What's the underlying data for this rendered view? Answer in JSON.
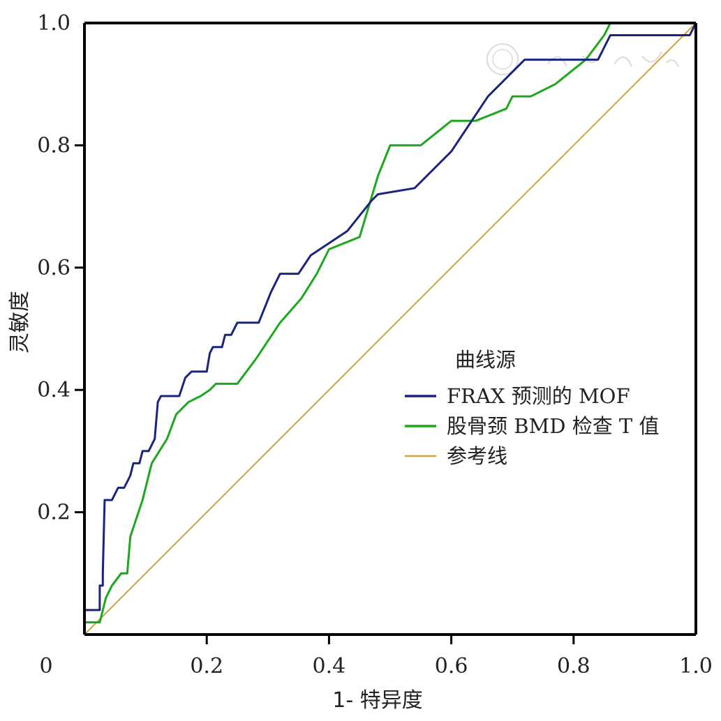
{
  "chart_data": {
    "type": "line",
    "xlabel": "1- 特异度",
    "ylabel": "灵敏度",
    "xlim": [
      0,
      1
    ],
    "ylim": [
      0,
      1
    ],
    "x_ticks": [
      "0",
      "0.2",
      "0.4",
      "0.6",
      "0.8",
      "1.0"
    ],
    "y_ticks": [
      "0.2",
      "0.4",
      "0.6",
      "0.8",
      "1.0"
    ],
    "grid": false,
    "legend": {
      "title": "曲线源",
      "position": "center-right"
    },
    "series": [
      {
        "name": "FRAX 预测的 MOF",
        "color": "#1a237e",
        "points": [
          [
            0,
            0
          ],
          [
            0,
            0.04
          ],
          [
            0.02,
            0.04
          ],
          [
            0.025,
            0.04
          ],
          [
            0.025,
            0.08
          ],
          [
            0.03,
            0.08
          ],
          [
            0.03,
            0.1
          ],
          [
            0.033,
            0.22
          ],
          [
            0.045,
            0.22
          ],
          [
            0.05,
            0.23
          ],
          [
            0.055,
            0.24
          ],
          [
            0.065,
            0.24
          ],
          [
            0.075,
            0.26
          ],
          [
            0.08,
            0.28
          ],
          [
            0.09,
            0.28
          ],
          [
            0.095,
            0.3
          ],
          [
            0.105,
            0.3
          ],
          [
            0.115,
            0.32
          ],
          [
            0.12,
            0.38
          ],
          [
            0.125,
            0.39
          ],
          [
            0.155,
            0.39
          ],
          [
            0.165,
            0.42
          ],
          [
            0.175,
            0.43
          ],
          [
            0.2,
            0.43
          ],
          [
            0.205,
            0.46
          ],
          [
            0.21,
            0.47
          ],
          [
            0.225,
            0.47
          ],
          [
            0.23,
            0.49
          ],
          [
            0.24,
            0.49
          ],
          [
            0.25,
            0.51
          ],
          [
            0.285,
            0.51
          ],
          [
            0.305,
            0.56
          ],
          [
            0.32,
            0.59
          ],
          [
            0.35,
            0.59
          ],
          [
            0.37,
            0.62
          ],
          [
            0.4,
            0.64
          ],
          [
            0.43,
            0.66
          ],
          [
            0.47,
            0.71
          ],
          [
            0.48,
            0.72
          ],
          [
            0.54,
            0.73
          ],
          [
            0.6,
            0.79
          ],
          [
            0.66,
            0.88
          ],
          [
            0.72,
            0.94
          ],
          [
            0.84,
            0.94
          ],
          [
            0.86,
            0.98
          ],
          [
            0.99,
            0.98
          ],
          [
            1.0,
            1.0
          ]
        ]
      },
      {
        "name": "股骨颈 BMD 检查 T 值",
        "color": "#1ca81c",
        "points": [
          [
            0,
            0
          ],
          [
            0,
            0.02
          ],
          [
            0.025,
            0.02
          ],
          [
            0.035,
            0.06
          ],
          [
            0.045,
            0.08
          ],
          [
            0.06,
            0.1
          ],
          [
            0.07,
            0.1
          ],
          [
            0.075,
            0.16
          ],
          [
            0.095,
            0.22
          ],
          [
            0.11,
            0.28
          ],
          [
            0.135,
            0.32
          ],
          [
            0.15,
            0.36
          ],
          [
            0.17,
            0.38
          ],
          [
            0.19,
            0.39
          ],
          [
            0.205,
            0.4
          ],
          [
            0.215,
            0.41
          ],
          [
            0.25,
            0.41
          ],
          [
            0.28,
            0.45
          ],
          [
            0.32,
            0.51
          ],
          [
            0.355,
            0.55
          ],
          [
            0.38,
            0.59
          ],
          [
            0.4,
            0.63
          ],
          [
            0.45,
            0.65
          ],
          [
            0.48,
            0.75
          ],
          [
            0.5,
            0.8
          ],
          [
            0.55,
            0.8
          ],
          [
            0.6,
            0.84
          ],
          [
            0.64,
            0.84
          ],
          [
            0.69,
            0.86
          ],
          [
            0.7,
            0.88
          ],
          [
            0.73,
            0.88
          ],
          [
            0.77,
            0.9
          ],
          [
            0.82,
            0.94
          ],
          [
            0.85,
            0.98
          ],
          [
            0.86,
            1.0
          ],
          [
            1.0,
            1.0
          ]
        ]
      },
      {
        "name": "参考线",
        "color": "#c8a540",
        "points": [
          [
            0,
            0
          ],
          [
            1,
            1
          ]
        ]
      }
    ]
  }
}
